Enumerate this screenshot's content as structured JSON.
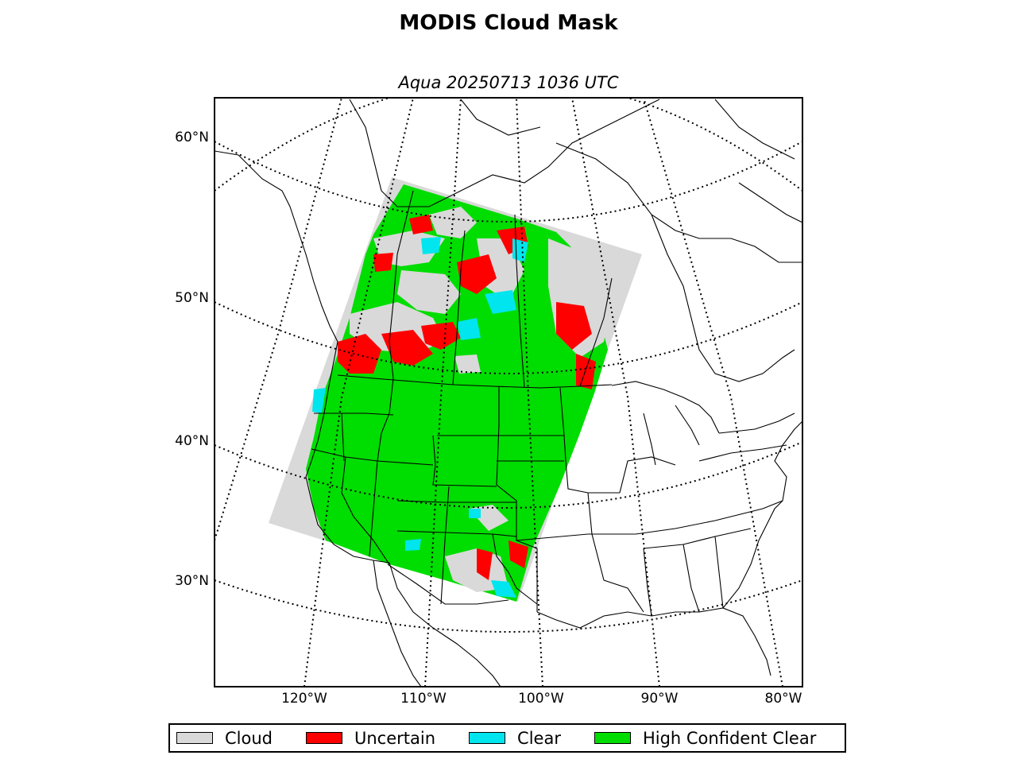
{
  "title": "MODIS Cloud Mask",
  "subtitle": "Aqua 20250713 1036 UTC",
  "lat_labels": [
    "60°N",
    "50°N",
    "40°N",
    "30°N"
  ],
  "lon_labels": [
    "120°W",
    "110°W",
    "100°W",
    "90°W",
    "80°W"
  ],
  "legend": [
    {
      "label": "Cloud",
      "color": "#d9d9d9"
    },
    {
      "label": "Uncertain",
      "color": "#ff0000"
    },
    {
      "label": "Clear",
      "color": "#00e5ee"
    },
    {
      "label": "High Confident Clear",
      "color": "#00dd00"
    }
  ],
  "colors": {
    "cloud": "#d9d9d9",
    "uncertain": "#ff0000",
    "clear": "#00e5ee",
    "high_confident_clear": "#00dd00"
  }
}
